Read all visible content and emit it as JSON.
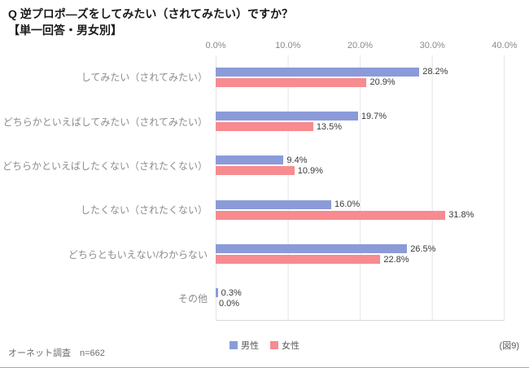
{
  "title": {
    "line1": "Q 逆プロポ―ズをしてみたい（されてみたい）ですか？",
    "line2": "【単一回答・男女別】"
  },
  "footer": {
    "left": "オーネット調査　n=662",
    "right": "(図9)"
  },
  "chart_data": {
    "type": "bar",
    "orientation": "horizontal",
    "title": "Q 逆プロポ―ズをしてみたい（されてみたい）ですか？【単一回答・男女別】",
    "categories": [
      "してみたい（されてみたい）",
      "どちらかといえばしてみたい（されてみたい）",
      "どちらかといえばしたくない（されたくない）",
      "したくない（されたくない）",
      "どちらともいえない/わからない",
      "その他"
    ],
    "series": [
      {
        "name": "男性",
        "color": "#8b9bd9",
        "values": [
          28.2,
          19.7,
          9.4,
          16.0,
          26.5,
          0.3
        ]
      },
      {
        "name": "女性",
        "color": "#f78b8f",
        "values": [
          20.9,
          13.5,
          10.9,
          31.8,
          22.8,
          0.0
        ]
      }
    ],
    "xlim": [
      0,
      40
    ],
    "xticks": [
      "0.0%",
      "10.0%",
      "20.0%",
      "30.0%",
      "40.0%"
    ],
    "grid": true,
    "legend_position": "bottom"
  }
}
